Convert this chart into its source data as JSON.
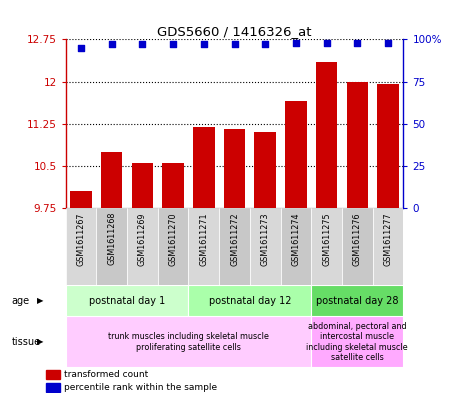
{
  "title": "GDS5660 / 1416326_at",
  "samples": [
    "GSM1611267",
    "GSM1611268",
    "GSM1611269",
    "GSM1611270",
    "GSM1611271",
    "GSM1611272",
    "GSM1611273",
    "GSM1611274",
    "GSM1611275",
    "GSM1611276",
    "GSM1611277"
  ],
  "transformed_count": [
    10.05,
    10.75,
    10.55,
    10.55,
    11.2,
    11.15,
    11.1,
    11.65,
    12.35,
    12.0,
    11.95
  ],
  "percentile_rank": [
    95,
    97,
    97,
    97,
    97,
    97,
    97,
    98,
    98,
    98,
    98
  ],
  "ylim": [
    9.75,
    12.75
  ],
  "yticks": [
    9.75,
    10.5,
    11.25,
    12.0,
    12.75
  ],
  "ytick_labels": [
    "9.75",
    "10.5",
    "11.25",
    "12",
    "12.75"
  ],
  "right_yticks": [
    0,
    25,
    50,
    75,
    100
  ],
  "right_ytick_labels": [
    "0",
    "25",
    "50",
    "75",
    "100%"
  ],
  "bar_color": "#cc0000",
  "dot_color": "#0000cc",
  "age_groups": [
    {
      "label": "postnatal day 1",
      "start": 0,
      "end": 3,
      "color": "#ccffcc"
    },
    {
      "label": "postnatal day 12",
      "start": 4,
      "end": 7,
      "color": "#aaffaa"
    },
    {
      "label": "postnatal day 28",
      "start": 8,
      "end": 10,
      "color": "#66dd66"
    }
  ],
  "tissue_groups": [
    {
      "label": "trunk muscles including skeletal muscle\nproliferating satellite cells",
      "start": 0,
      "end": 7,
      "color": "#ffccff"
    },
    {
      "label": "abdominal, pectoral and\nintercostal muscle\nincluding skeletal muscle\nsatellite cells",
      "start": 8,
      "end": 10,
      "color": "#ffaaff"
    }
  ]
}
